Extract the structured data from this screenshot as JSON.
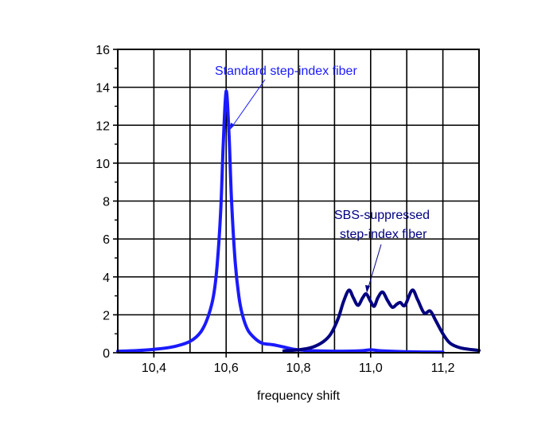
{
  "chart_data": {
    "type": "line",
    "title": "",
    "xlabel": "frequency shift",
    "ylabel": "",
    "xlim": [
      10.3,
      11.3
    ],
    "ylim": [
      0,
      16
    ],
    "grid": true,
    "x_ticks": [
      10.4,
      10.6,
      10.8,
      11.0,
      11.2
    ],
    "x_tick_labels": [
      "10,4",
      "10,6",
      "10,8",
      "11,0",
      "11,2"
    ],
    "y_ticks": [
      0,
      2,
      4,
      6,
      8,
      10,
      12,
      14,
      16
    ],
    "y_tick_labels": [
      "0",
      "2",
      "4",
      "6",
      "8",
      "10",
      "12",
      "14",
      "16"
    ],
    "series": [
      {
        "color": "#1a1aff",
        "x": [
          10.3,
          10.35,
          10.4,
          10.45,
          10.5,
          10.53,
          10.55,
          10.565,
          10.575,
          10.585,
          10.592,
          10.6,
          10.608,
          10.615,
          10.625,
          10.635,
          10.645,
          10.66,
          10.68,
          10.7,
          10.73,
          10.76,
          10.8,
          10.9,
          10.97,
          11.0,
          11.03,
          11.1,
          11.2
        ],
        "y": [
          0.08,
          0.11,
          0.18,
          0.3,
          0.6,
          1.1,
          1.9,
          3.0,
          4.6,
          7.5,
          11.0,
          13.8,
          11.5,
          8.0,
          4.8,
          3.0,
          2.0,
          1.2,
          0.75,
          0.5,
          0.42,
          0.3,
          0.15,
          0.08,
          0.1,
          0.15,
          0.1,
          0.05,
          0.03
        ]
      },
      {
        "color": "#000080",
        "x": [
          10.76,
          10.8,
          10.84,
          10.87,
          10.89,
          10.91,
          10.925,
          10.94,
          10.952,
          10.965,
          10.978,
          10.988,
          11.0,
          11.01,
          11.02,
          11.033,
          11.047,
          11.06,
          11.072,
          11.082,
          11.095,
          11.115,
          11.13,
          11.148,
          11.165,
          11.18,
          11.2,
          11.22,
          11.25,
          11.3
        ],
        "y": [
          0.1,
          0.15,
          0.3,
          0.6,
          1.0,
          1.8,
          2.7,
          3.3,
          2.9,
          2.5,
          2.9,
          3.1,
          2.7,
          2.45,
          2.9,
          3.2,
          2.75,
          2.4,
          2.55,
          2.65,
          2.5,
          3.3,
          2.8,
          2.1,
          2.2,
          1.7,
          1.0,
          0.5,
          0.25,
          0.12
        ]
      }
    ],
    "annotations": [
      {
        "text": "Standard step-index fiber",
        "color": "#1a1aff",
        "points_to": [
          10.6,
          12
        ]
      },
      {
        "text_lines": [
          "SBS-suppressed",
          "step-index fiber"
        ],
        "color": "#000080",
        "points_to": [
          10.98,
          3.2
        ]
      }
    ]
  }
}
